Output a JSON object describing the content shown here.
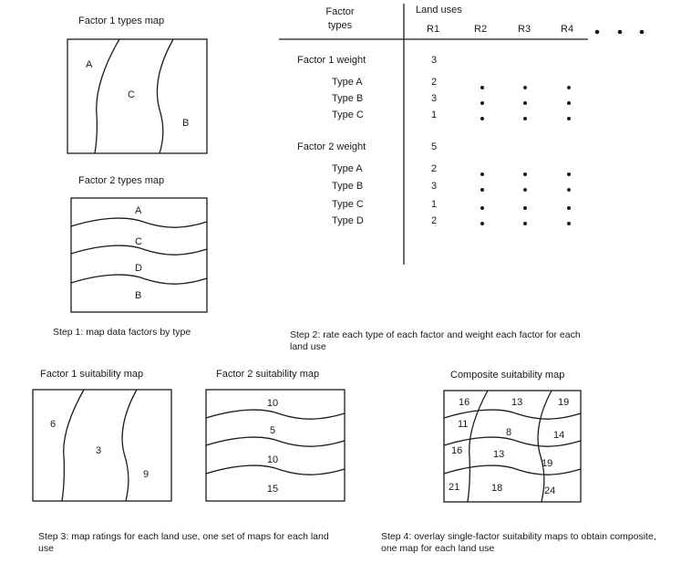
{
  "step1": {
    "factor1_title": "Factor 1 types map",
    "factor1_regions": [
      "A",
      "C",
      "B"
    ],
    "factor2_title": "Factor 2 types map",
    "factor2_regions": [
      "A",
      "C",
      "D",
      "B"
    ],
    "caption": "Step 1: map data factors by type"
  },
  "step2": {
    "header_factor_types": [
      "Factor",
      "types"
    ],
    "header_land_uses": "Land uses",
    "columns": [
      "R1",
      "R2",
      "R3",
      "R4"
    ],
    "ellipsis": "• • •",
    "factor1_label": "Factor 1 weight",
    "factor1_weight": "3",
    "factor1_rows": [
      {
        "label": "Type A",
        "value": "2"
      },
      {
        "label": "Type B",
        "value": "3"
      },
      {
        "label": "Type C",
        "value": "1"
      }
    ],
    "factor2_label": "Factor 2 weight",
    "factor2_weight": "5",
    "factor2_rows": [
      {
        "label": "Type A",
        "value": "2"
      },
      {
        "label": "Type B",
        "value": "3"
      },
      {
        "label": "Type C",
        "value": "1"
      },
      {
        "label": "Type D",
        "value": "2"
      }
    ],
    "dot": "•",
    "caption": "Step 2: rate each type of each factor and weight each factor for each land use"
  },
  "step3": {
    "factor1_title": "Factor 1 suitability map",
    "factor1_values": [
      "6",
      "3",
      "9"
    ],
    "factor2_title": "Factor 2 suitability map",
    "factor2_values": [
      "10",
      "5",
      "10",
      "15"
    ],
    "caption": "Step 3: map ratings for each land use, one set of maps for each land use"
  },
  "step4": {
    "title": "Composite suitability map",
    "values": [
      "16",
      "13",
      "19",
      "11",
      "8",
      "14",
      "16",
      "13",
      "19",
      "21",
      "18",
      "24"
    ],
    "caption": "Step 4: overlay single-factor suitability maps to obtain composite, one map for each land use"
  }
}
